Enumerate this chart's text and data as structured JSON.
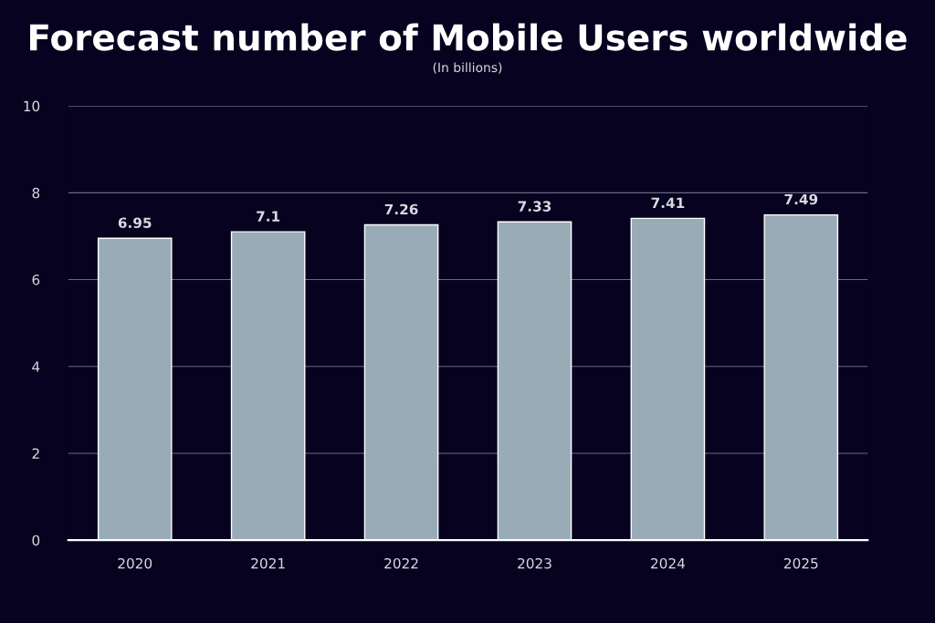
{
  "chart_data": {
    "type": "bar",
    "title": "Forecast number of Mobile Users worldwide",
    "subtitle": "(In billions)",
    "categories": [
      "2020",
      "2021",
      "2022",
      "2023",
      "2024",
      "2025"
    ],
    "values": [
      6.95,
      7.1,
      7.26,
      7.33,
      7.41,
      7.49
    ],
    "color": "#9aabb8",
    "ylim": [
      0,
      10
    ],
    "yticks": [
      0,
      2,
      4,
      6,
      8,
      10
    ],
    "grid": "y",
    "data_labels": true
  }
}
